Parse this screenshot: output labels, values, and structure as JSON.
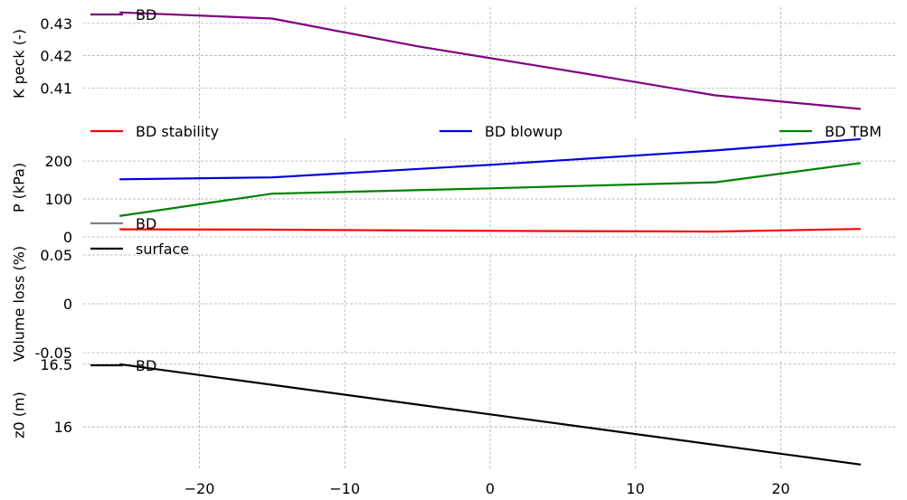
{
  "chart_data": [
    {
      "type": "line",
      "ylabel": "K peck (-)",
      "ylim": [
        0.4,
        0.435
      ],
      "yticks": [
        0.41,
        0.42,
        0.43
      ],
      "ytick_labels": [
        "0.41",
        "0.42",
        "0.43"
      ],
      "grid": true,
      "legend": "top-left",
      "series": [
        {
          "name": "BD",
          "color": "#800080",
          "x": [
            -25.5,
            -15,
            -5,
            5,
            15.5,
            25.5
          ],
          "y": [
            0.4334,
            0.4315,
            0.4229,
            0.4156,
            0.4077,
            0.4035
          ]
        }
      ]
    },
    {
      "type": "line",
      "ylabel": "P (kPa)",
      "ylim": [
        0,
        260
      ],
      "yticks": [
        0,
        100,
        200
      ],
      "ytick_labels": [
        "0",
        "100",
        "200"
      ],
      "grid": true,
      "legend": "top (spread)",
      "series": [
        {
          "name": "BD stability",
          "color": "#ff0000",
          "x": [
            -25.5,
            -15,
            0,
            15.5,
            25.5
          ],
          "y": [
            20,
            19,
            16,
            14,
            21
          ]
        },
        {
          "name": "BD blowup",
          "color": "#0000dd",
          "x": [
            -25.5,
            -15,
            0,
            15.5,
            25.5
          ],
          "y": [
            152,
            157,
            190,
            228,
            258
          ]
        },
        {
          "name": "BD TBM",
          "color": "#008000",
          "x": [
            -25.5,
            -15,
            0,
            15.5,
            25.5
          ],
          "y": [
            55,
            114,
            128,
            144,
            195
          ]
        }
      ]
    },
    {
      "type": "line",
      "ylabel": "Volume loss (%)",
      "ylim": [
        -0.05,
        0.05
      ],
      "yticks": [
        -0.05,
        0,
        0.05
      ],
      "ytick_labels": [
        "-0.05",
        "0",
        "0.05"
      ],
      "grid": true,
      "legend": "top-left",
      "series": [
        {
          "name": "BD",
          "color": "#808080",
          "x": [],
          "y": []
        },
        {
          "name": "surface",
          "color": "#000000",
          "x": [],
          "y": []
        }
      ]
    },
    {
      "type": "line",
      "ylabel": "z0 (m)",
      "ylim": [
        15.67,
        16.52
      ],
      "yticks": [
        16,
        16.5
      ],
      "ytick_labels": [
        "16",
        "16.5"
      ],
      "grid": true,
      "legend": "top-left",
      "series": [
        {
          "name": "BD",
          "color": "#000000",
          "x": [
            -25.5,
            25.5
          ],
          "y": [
            16.5,
            15.7
          ]
        }
      ]
    }
  ],
  "x_axis": {
    "xlim": [
      -28,
      28
    ],
    "ticks": [
      -20,
      -10,
      0,
      10,
      20
    ],
    "tick_labels": [
      "−20",
      "−10",
      "0",
      "10",
      "20"
    ]
  }
}
